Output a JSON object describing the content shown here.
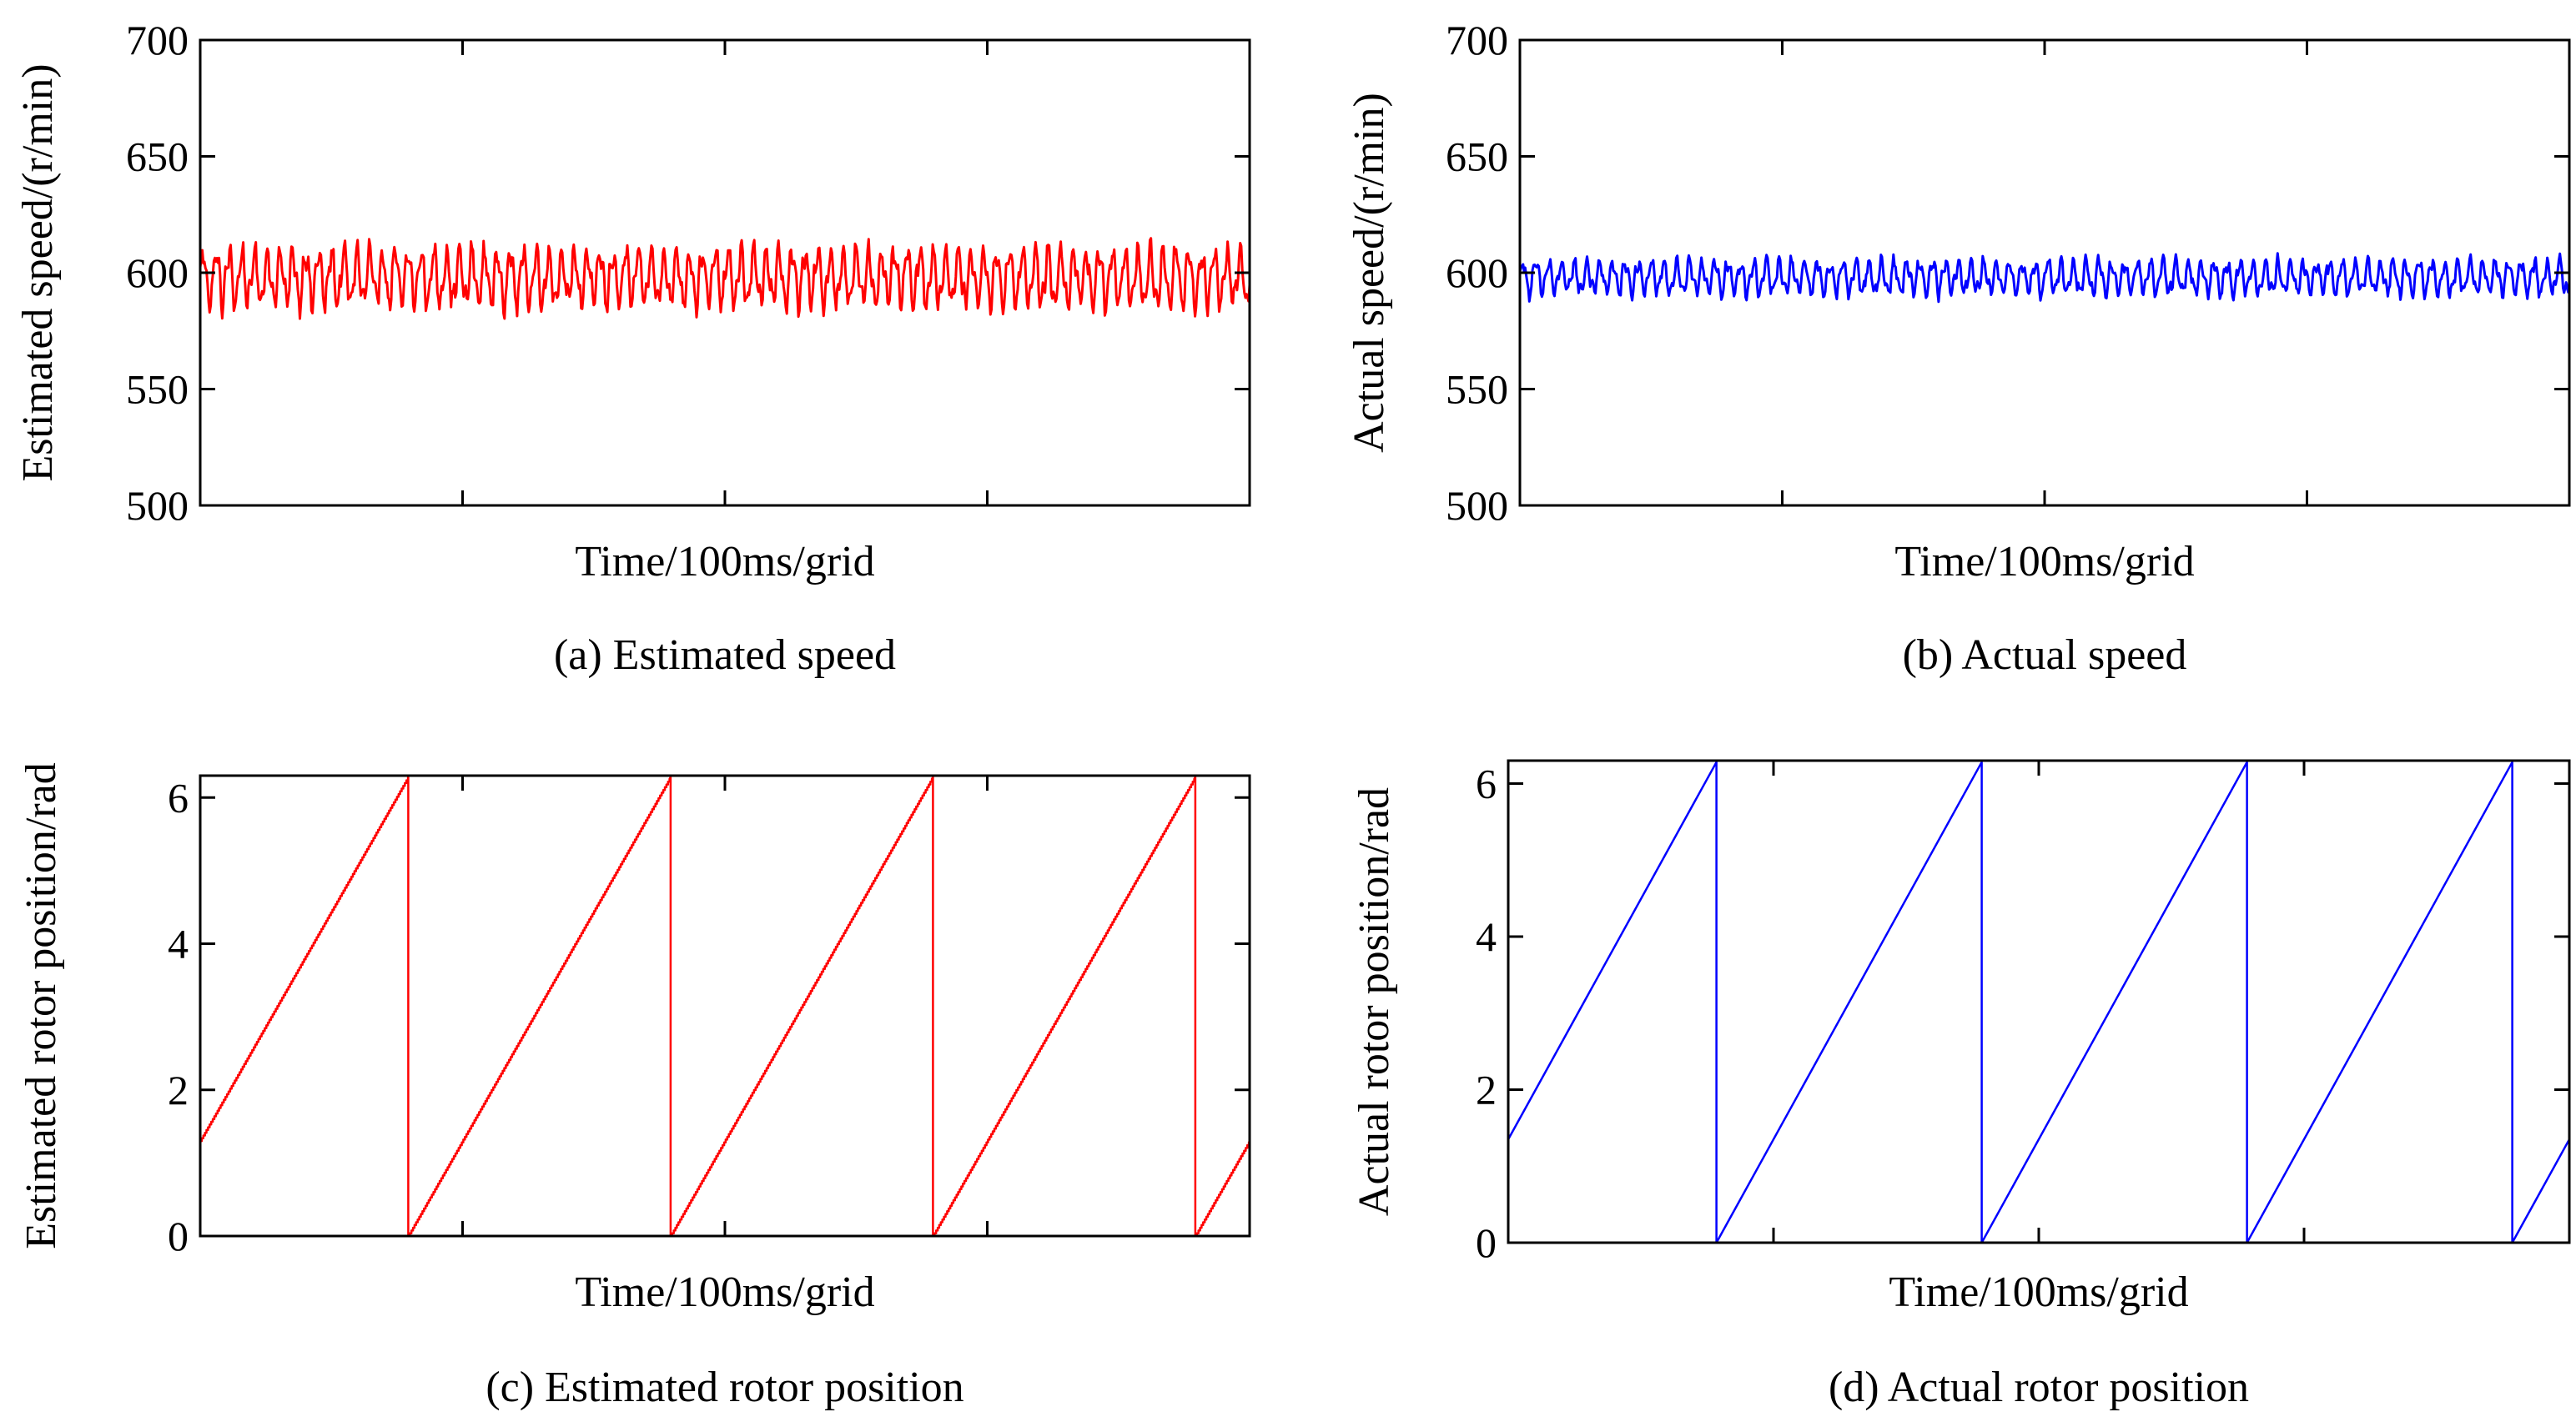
{
  "chart_data": [
    {
      "id": "a",
      "type": "line",
      "caption": "(a) Estimated speed",
      "xlabel": "Time/100ms/grid",
      "ylabel": "Estimated speed/(r/min)",
      "ylim": [
        500,
        700
      ],
      "yticks": [
        500,
        550,
        600,
        650,
        700
      ],
      "ytick_labels": [
        "500",
        "550",
        "600",
        "650",
        "700"
      ],
      "x_grid_divisions": 4,
      "grid": false,
      "color": "#ff0000",
      "signal": {
        "kind": "oscillation",
        "mean": 598,
        "amplitude": 17,
        "cycles": 82,
        "min": 571,
        "max": 625,
        "samples": 1000
      }
    },
    {
      "id": "b",
      "type": "line",
      "caption": "(b) Actual speed",
      "xlabel": "Time/100ms/grid",
      "ylabel": "Actual speed/(r/min)",
      "ylim": [
        500,
        700
      ],
      "yticks": [
        500,
        550,
        600,
        650,
        700
      ],
      "ytick_labels": [
        "500",
        "550",
        "600",
        "650",
        "700"
      ],
      "x_grid_divisions": 4,
      "grid": false,
      "color": "#0000ff",
      "signal": {
        "kind": "oscillation",
        "mean": 598,
        "amplitude": 10,
        "cycles": 82,
        "min": 584,
        "max": 611,
        "samples": 1000
      }
    },
    {
      "id": "c",
      "type": "line",
      "caption": "(c) Estimated rotor position",
      "xlabel": "Time/100ms/grid",
      "ylabel": "Estimated rotor position/rad",
      "ylim": [
        0,
        6.3
      ],
      "yticks": [
        0,
        2,
        4,
        6
      ],
      "ytick_labels": [
        "0",
        "2",
        "4",
        "6"
      ],
      "x_grid_divisions": 4,
      "grid": false,
      "color": "#ff0000",
      "signal": {
        "kind": "sawtooth",
        "start": 1.3,
        "peak": 6.28,
        "period_grid": 1.0,
        "first_wrap_grid": 0.79,
        "stepped": true
      }
    },
    {
      "id": "d",
      "type": "line",
      "caption": "(d) Actual rotor position",
      "xlabel": "Time/100ms/grid",
      "ylabel": "Actual rotor position/rad",
      "ylim": [
        0,
        6.3
      ],
      "yticks": [
        0,
        2,
        4,
        6
      ],
      "ytick_labels": [
        "0",
        "2",
        "4",
        "6"
      ],
      "x_grid_divisions": 4,
      "grid": false,
      "color": "#0000ff",
      "signal": {
        "kind": "sawtooth",
        "start": 1.35,
        "peak": 6.28,
        "period_grid": 1.0,
        "first_wrap_grid": 0.79,
        "stepped": false
      }
    }
  ]
}
